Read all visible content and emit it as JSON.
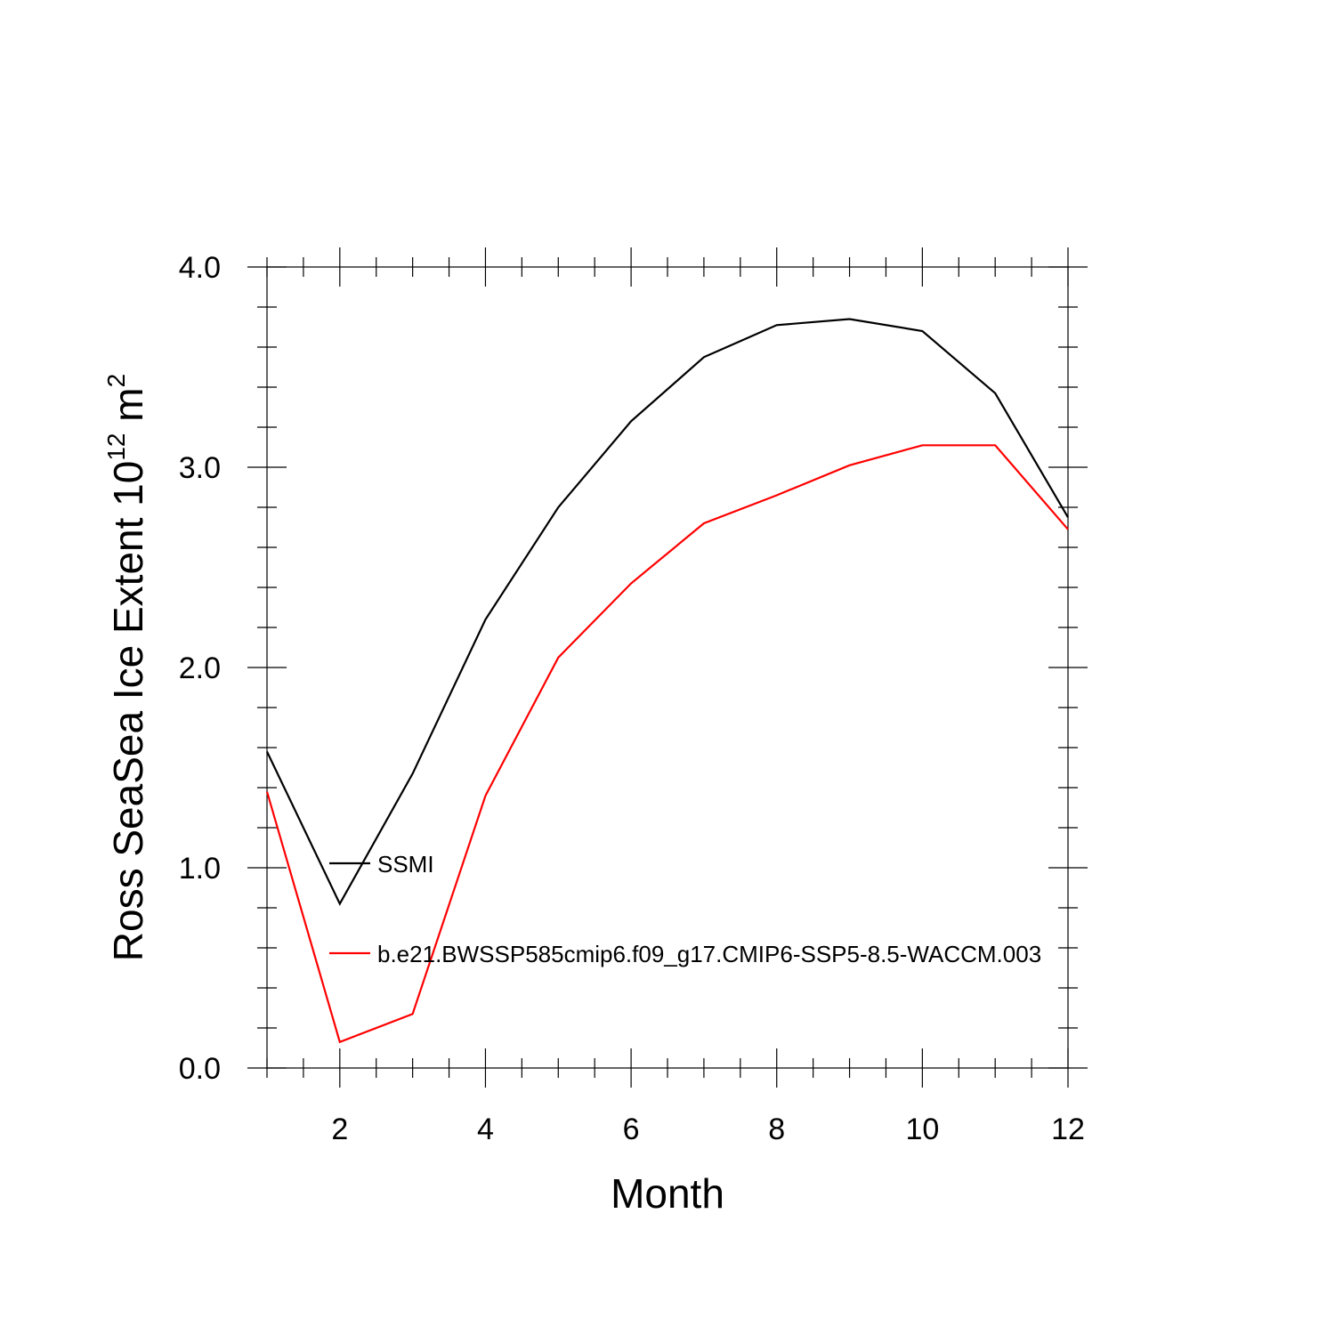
{
  "chart_data": {
    "type": "line",
    "x": [
      1,
      2,
      3,
      4,
      5,
      6,
      7,
      8,
      9,
      10,
      11,
      12
    ],
    "series": [
      {
        "name": "SSMI",
        "color": "#000000",
        "values": [
          1.58,
          0.82,
          1.47,
          2.24,
          2.8,
          3.23,
          3.55,
          3.71,
          3.74,
          3.68,
          3.37,
          2.75
        ]
      },
      {
        "name": "b.e21.BWSSP585cmip6.f09_g17.CMIP6-SSP5-8.5-WACCM.003",
        "color": "#ff0000",
        "values": [
          1.38,
          0.13,
          0.27,
          1.36,
          2.05,
          2.42,
          2.72,
          2.86,
          3.01,
          3.11,
          3.11,
          2.69
        ]
      }
    ],
    "xlabel": "Month",
    "ylabel_main": "Ross SeaSea Ice Extent 10",
    "ylabel_exp": "12",
    "ylabel_unit": " m",
    "ylabel_unit_exp": "2",
    "xlim": [
      1,
      12
    ],
    "ylim": [
      0,
      4
    ],
    "xticks": [
      2,
      4,
      6,
      8,
      10,
      12
    ],
    "xtick_labels": [
      "2",
      "4",
      "6",
      "8",
      "10",
      "12"
    ],
    "yticks": [
      0,
      1,
      2,
      3,
      4
    ],
    "ytick_labels": [
      "0.0",
      "1.0",
      "2.0",
      "3.0",
      "4.0"
    ],
    "legend_position": "inside-left"
  }
}
